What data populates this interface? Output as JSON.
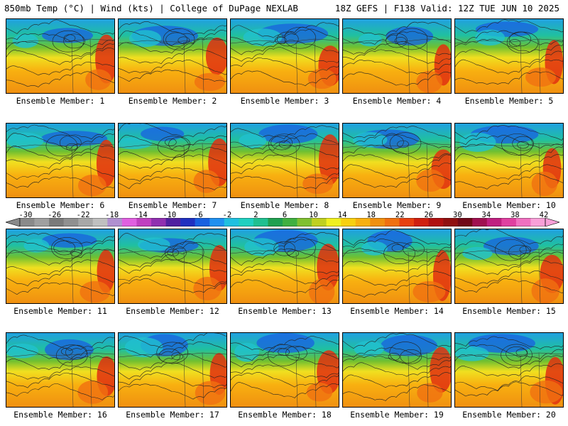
{
  "header": {
    "left": "850mb Temp (°C) | Wind (kts) | College of DuPage NEXLAB",
    "right": "18Z GEFS | F138 Valid: 12Z TUE JUN 10 2025"
  },
  "colorbar": {
    "ticks": [
      "-30",
      "-26",
      "-22",
      "-18",
      "-14",
      "-10",
      "-6",
      "-2",
      "2",
      "6",
      "10",
      "14",
      "18",
      "22",
      "26",
      "30",
      "34",
      "38",
      "42"
    ],
    "colors": [
      "#8a8a8a",
      "#a0a0a0",
      "#7a7a7a",
      "#909090",
      "#a8a8a8",
      "#c0c0c0",
      "#b090d0",
      "#e060e0",
      "#c040c0",
      "#9030b0",
      "#5020a0",
      "#2030c0",
      "#1860e0",
      "#2090f0",
      "#20c0e0",
      "#20d0c0",
      "#20c090",
      "#20a050",
      "#40b040",
      "#80c030",
      "#c0d020",
      "#f0f020",
      "#f8d010",
      "#f8b010",
      "#f09010",
      "#f07010",
      "#e84010",
      "#d02010",
      "#b01010",
      "#901010",
      "#700818",
      "#a01050",
      "#c02080",
      "#e040a0",
      "#f070c0",
      "#f8a0d8"
    ]
  },
  "caption_prefix": "Ensemble Member: ",
  "members": [
    {
      "label": "Ensemble Member: 1",
      "seed": 11
    },
    {
      "label": "Ensemble Member: 2",
      "seed": 23
    },
    {
      "label": "Ensemble Member: 3",
      "seed": 37
    },
    {
      "label": "Ensemble Member: 4",
      "seed": 41
    },
    {
      "label": "Ensemble Member: 5",
      "seed": 53
    },
    {
      "label": "Ensemble Member: 6",
      "seed": 67
    },
    {
      "label": "Ensemble Member: 7",
      "seed": 71
    },
    {
      "label": "Ensemble Member: 8",
      "seed": 83
    },
    {
      "label": "Ensemble Member: 9",
      "seed": 97
    },
    {
      "label": "Ensemble Member: 10",
      "seed": 101
    },
    {
      "label": "Ensemble Member: 11",
      "seed": 113
    },
    {
      "label": "Ensemble Member: 12",
      "seed": 127
    },
    {
      "label": "Ensemble Member: 13",
      "seed": 131
    },
    {
      "label": "Ensemble Member: 14",
      "seed": 149
    },
    {
      "label": "Ensemble Member: 15",
      "seed": 157
    },
    {
      "label": "Ensemble Member: 16",
      "seed": 163
    },
    {
      "label": "Ensemble Member: 17",
      "seed": 173
    },
    {
      "label": "Ensemble Member: 18",
      "seed": 181
    },
    {
      "label": "Ensemble Member: 19",
      "seed": 191
    },
    {
      "label": "Ensemble Member: 20",
      "seed": 199
    }
  ]
}
